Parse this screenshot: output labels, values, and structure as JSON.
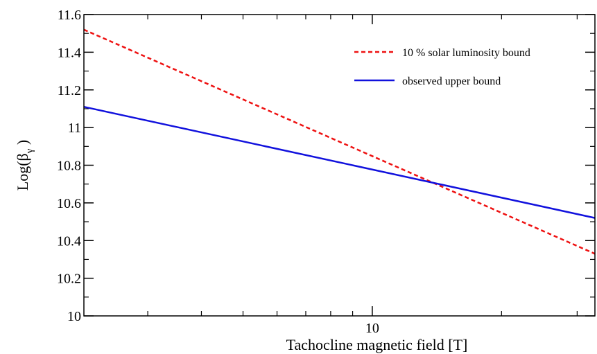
{
  "chart_data": {
    "type": "line",
    "title": "",
    "xlabel": "Tachocline magnetic field [T]",
    "ylabel_main": "Log(β",
    "ylabel_sub": "γ",
    "ylabel_close": " )",
    "x_scale": "log",
    "xlim": [
      2.13,
      33.0
    ],
    "ylim": [
      10.0,
      11.6
    ],
    "x_tick_labels": [
      {
        "value": 10,
        "label": "10"
      }
    ],
    "x_minor_ticks": [
      3,
      4,
      5,
      6,
      7,
      8,
      9,
      20,
      30
    ],
    "y_ticks": [
      {
        "value": 10.0,
        "label": "10"
      },
      {
        "value": 10.2,
        "label": "10.2"
      },
      {
        "value": 10.4,
        "label": "10.4"
      },
      {
        "value": 10.6,
        "label": "10.6"
      },
      {
        "value": 10.8,
        "label": "10.8"
      },
      {
        "value": 11.0,
        "label": "11"
      },
      {
        "value": 11.2,
        "label": "11.2"
      },
      {
        "value": 11.4,
        "label": "11.4"
      },
      {
        "value": 11.6,
        "label": "11.6"
      }
    ],
    "grid": false,
    "legend_position": "top-right",
    "series": [
      {
        "name": "10 % solar luminosity bound",
        "color": "#ee1111",
        "dash": "dashed",
        "x": [
          2.13,
          33.0
        ],
        "y": [
          11.52,
          10.33
        ]
      },
      {
        "name": "observed upper bound",
        "color": "#1111dd",
        "dash": "solid",
        "x": [
          2.13,
          33.0
        ],
        "y": [
          11.11,
          10.52
        ]
      }
    ]
  }
}
